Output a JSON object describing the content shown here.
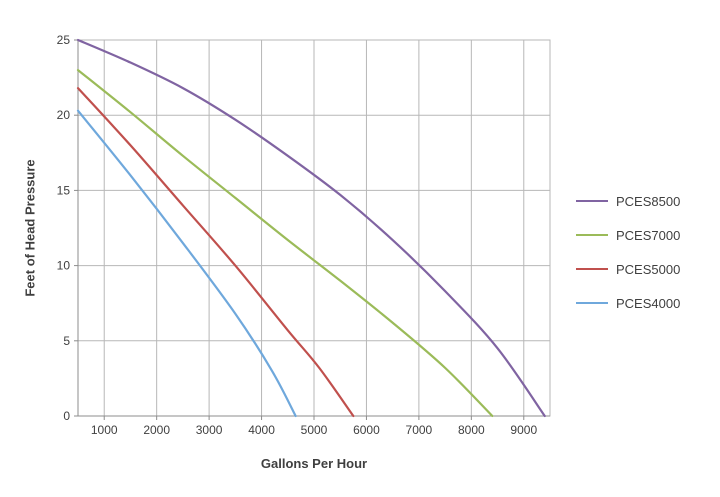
{
  "chart_data": {
    "type": "line",
    "title": "",
    "xlabel": "Gallons Per Hour",
    "ylabel": "Feet of Head Pressure",
    "xlim": [
      500,
      9500
    ],
    "ylim": [
      0,
      25
    ],
    "x_ticks": [
      1000,
      2000,
      3000,
      4000,
      5000,
      6000,
      7000,
      8000,
      9000
    ],
    "y_ticks": [
      0,
      5,
      10,
      15,
      20,
      25
    ],
    "grid": true,
    "legend_position": "right",
    "grid_color": "#b7b7b7",
    "axis_color": "#8c8c8c",
    "text_color": "#404040",
    "series": [
      {
        "name": "PCES8500",
        "color": "#8064A2",
        "x": [
          500,
          1500,
          2500,
          3500,
          4500,
          5500,
          6500,
          7500,
          8500,
          9400
        ],
        "y": [
          25,
          23.5,
          21.8,
          19.7,
          17.3,
          14.7,
          11.7,
          8.3,
          4.5,
          0
        ]
      },
      {
        "name": "PCES7000",
        "color": "#9BBB59",
        "x": [
          500,
          1500,
          2500,
          3500,
          4500,
          5500,
          6500,
          7500,
          8400
        ],
        "y": [
          23,
          20.2,
          17.3,
          14.5,
          11.7,
          9,
          6.2,
          3.2,
          0
        ]
      },
      {
        "name": "PCES5000",
        "color": "#C0504D",
        "x": [
          500,
          1500,
          2500,
          3500,
          4500,
          5100,
          5750
        ],
        "y": [
          21.8,
          18,
          14,
          10,
          5.7,
          3.2,
          0
        ]
      },
      {
        "name": "PCES4000",
        "color": "#6FA8DC",
        "x": [
          500,
          1500,
          2500,
          3500,
          4200,
          4650
        ],
        "y": [
          20.3,
          16,
          11.5,
          6.8,
          3,
          0
        ]
      }
    ]
  }
}
